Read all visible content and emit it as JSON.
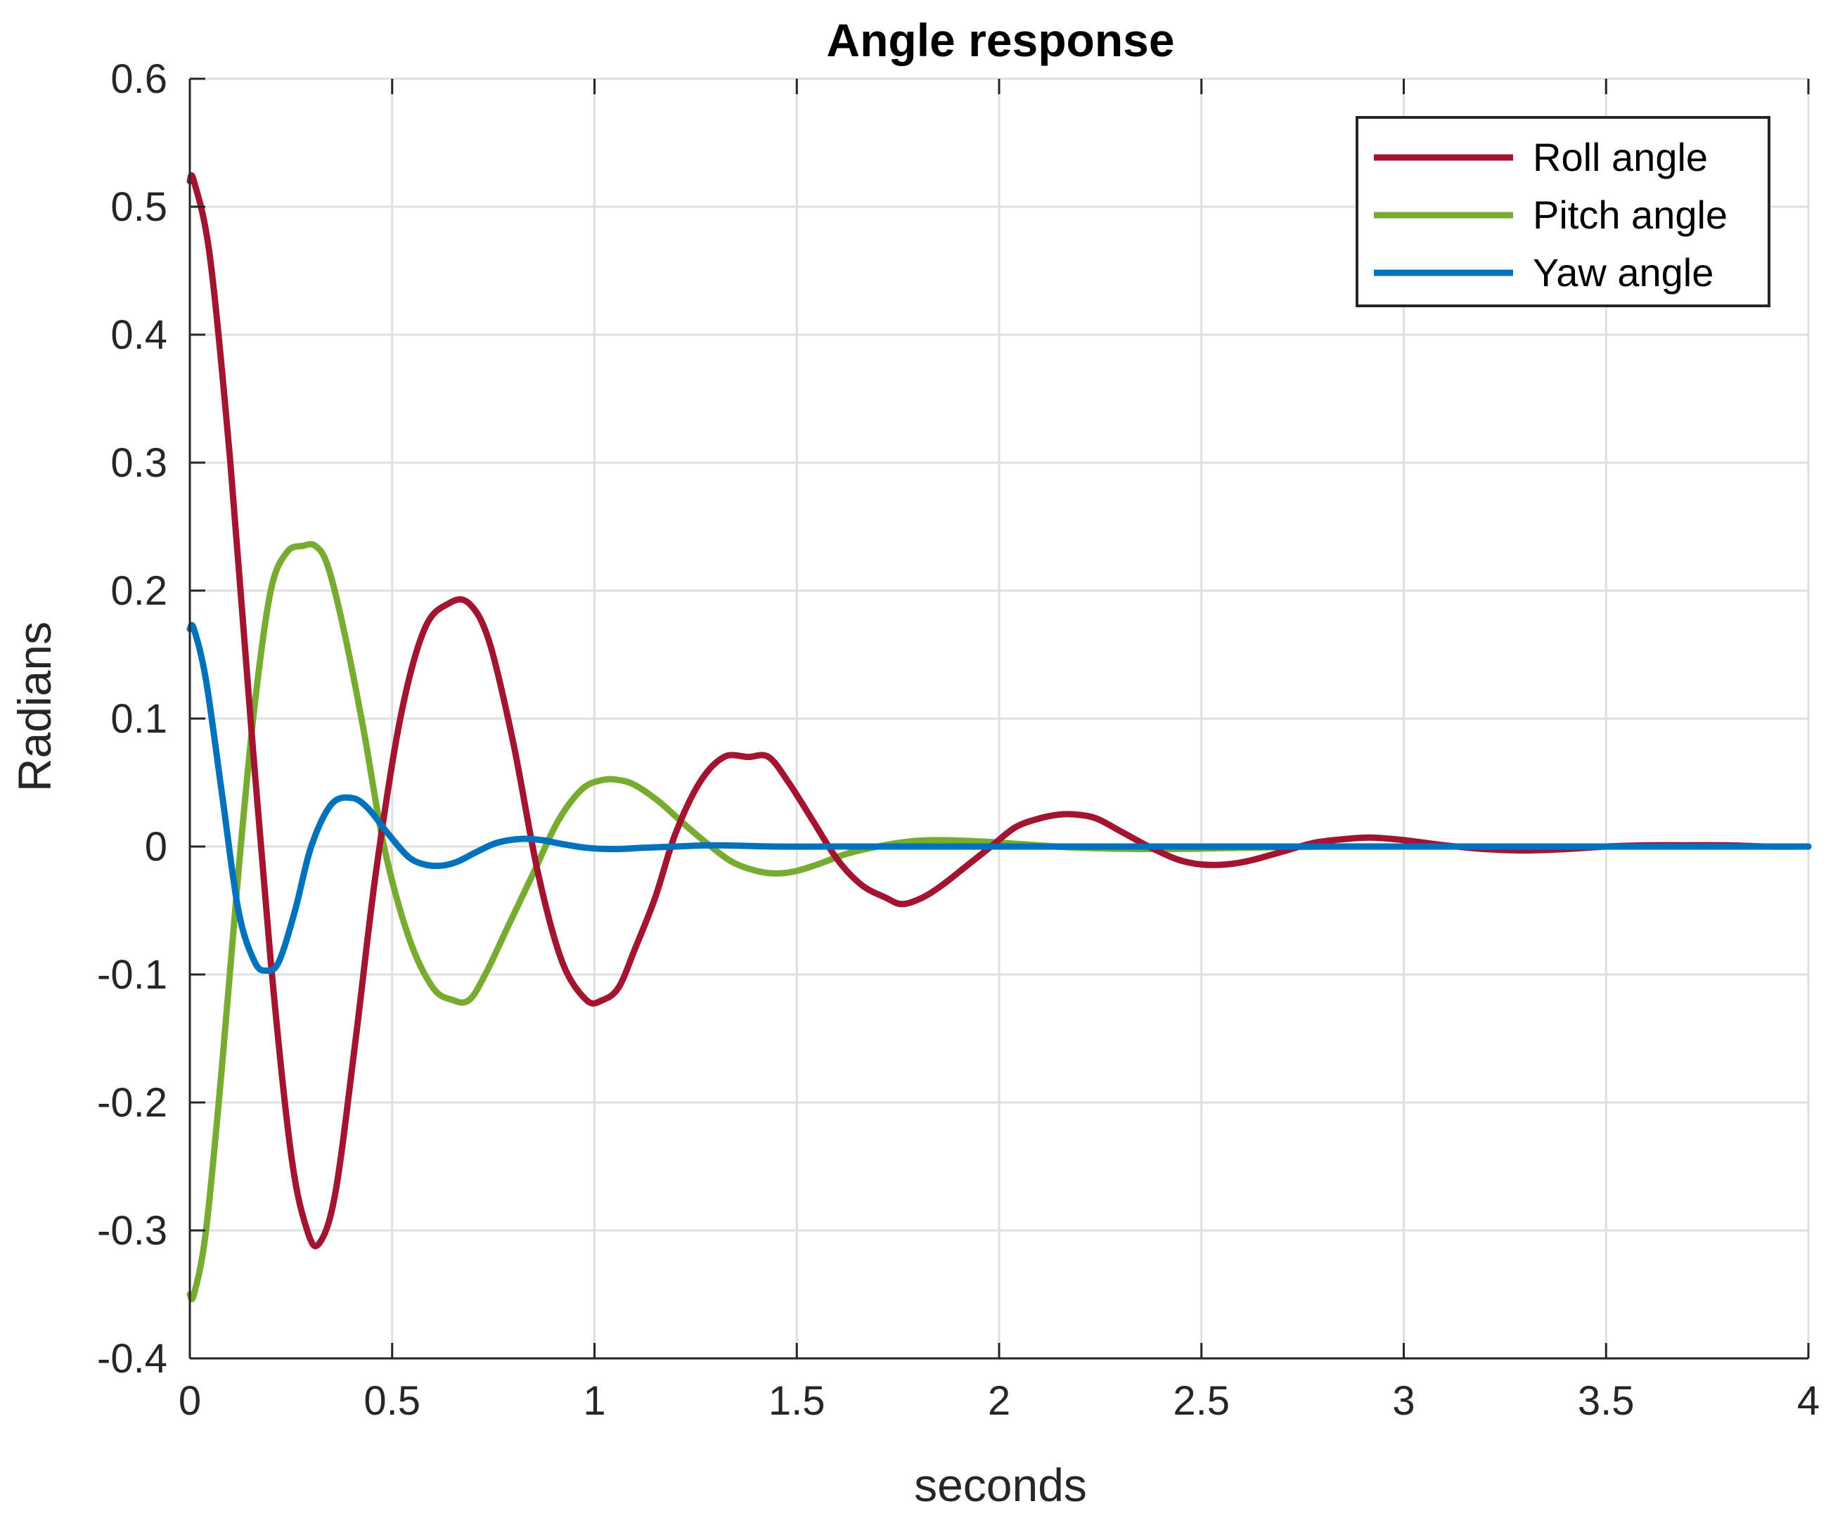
{
  "chart_data": {
    "type": "line",
    "title": "Angle response",
    "xlabel": "seconds",
    "ylabel": "Radians",
    "xlim": [
      0,
      4
    ],
    "ylim": [
      -0.4,
      0.6
    ],
    "grid": true,
    "legend_position": "top-right",
    "x_ticks": [
      {
        "value": 0,
        "label": "0"
      },
      {
        "value": 0.5,
        "label": "0.5"
      },
      {
        "value": 1,
        "label": "1"
      },
      {
        "value": 1.5,
        "label": "1.5"
      },
      {
        "value": 2,
        "label": "2"
      },
      {
        "value": 2.5,
        "label": "2.5"
      },
      {
        "value": 3,
        "label": "3"
      },
      {
        "value": 3.5,
        "label": "3.5"
      },
      {
        "value": 4,
        "label": "4"
      }
    ],
    "y_ticks": [
      {
        "value": -0.4,
        "label": "-0.4"
      },
      {
        "value": -0.3,
        "label": "-0.3"
      },
      {
        "value": -0.2,
        "label": "-0.2"
      },
      {
        "value": -0.1,
        "label": "-0.1"
      },
      {
        "value": 0,
        "label": "0"
      },
      {
        "value": 0.1,
        "label": "0.1"
      },
      {
        "value": 0.2,
        "label": "0.2"
      },
      {
        "value": 0.3,
        "label": "0.3"
      },
      {
        "value": 0.4,
        "label": "0.4"
      },
      {
        "value": 0.5,
        "label": "0.5"
      },
      {
        "value": 0.6,
        "label": "0.6"
      }
    ],
    "series": [
      {
        "name": "Roll angle",
        "color": "#A2142F",
        "x": [
          0,
          0.01,
          0.05,
          0.1,
          0.15,
          0.2,
          0.25,
          0.29,
          0.32,
          0.36,
          0.41,
          0.46,
          0.52,
          0.58,
          0.64,
          0.69,
          0.74,
          0.8,
          0.86,
          0.92,
          0.98,
          1.02,
          1.06,
          1.1,
          1.15,
          1.2,
          1.26,
          1.32,
          1.38,
          1.43,
          1.48,
          1.54,
          1.6,
          1.66,
          1.72,
          1.76,
          1.81,
          1.86,
          1.92,
          1.98,
          2.04,
          2.1,
          2.15,
          2.19,
          2.24,
          2.3,
          2.37,
          2.44,
          2.5,
          2.56,
          2.62,
          2.7,
          2.78,
          2.86,
          2.92,
          3.0,
          3.1,
          3.2,
          3.3,
          3.4,
          3.5,
          3.6,
          3.7,
          3.8,
          3.9,
          4.0
        ],
        "y": [
          0.52,
          0.52,
          0.46,
          0.3,
          0.1,
          -0.09,
          -0.24,
          -0.3,
          -0.31,
          -0.27,
          -0.15,
          -0.02,
          0.1,
          0.17,
          0.19,
          0.19,
          0.16,
          0.08,
          -0.02,
          -0.09,
          -0.12,
          -0.12,
          -0.11,
          -0.08,
          -0.04,
          0.01,
          0.05,
          0.07,
          0.07,
          0.07,
          0.05,
          0.02,
          -0.01,
          -0.03,
          -0.04,
          -0.045,
          -0.04,
          -0.03,
          -0.015,
          0.0,
          0.015,
          0.022,
          0.025,
          0.025,
          0.022,
          0.012,
          0.0,
          -0.01,
          -0.014,
          -0.014,
          -0.011,
          -0.004,
          0.003,
          0.006,
          0.007,
          0.005,
          0.001,
          -0.002,
          -0.003,
          -0.002,
          0.0,
          0.001,
          0.001,
          0.001,
          0.0,
          0.0
        ]
      },
      {
        "name": "Pitch angle",
        "color": "#77AC30",
        "x": [
          0,
          0.01,
          0.04,
          0.08,
          0.12,
          0.16,
          0.2,
          0.24,
          0.28,
          0.31,
          0.34,
          0.38,
          0.43,
          0.48,
          0.54,
          0.6,
          0.65,
          0.69,
          0.73,
          0.79,
          0.85,
          0.91,
          0.97,
          1.02,
          1.06,
          1.1,
          1.16,
          1.22,
          1.28,
          1.34,
          1.4,
          1.45,
          1.5,
          1.56,
          1.62,
          1.7,
          1.78,
          1.85,
          1.95,
          2.05,
          2.2,
          2.4,
          2.6,
          2.8,
          3.0,
          3.5,
          4.0
        ],
        "y": [
          -0.35,
          -0.35,
          -0.3,
          -0.17,
          -0.02,
          0.11,
          0.2,
          0.23,
          0.235,
          0.235,
          0.22,
          0.17,
          0.09,
          0.0,
          -0.07,
          -0.11,
          -0.12,
          -0.12,
          -0.1,
          -0.06,
          -0.02,
          0.02,
          0.045,
          0.052,
          0.052,
          0.048,
          0.035,
          0.018,
          0.002,
          -0.012,
          -0.019,
          -0.021,
          -0.019,
          -0.013,
          -0.006,
          0.0,
          0.004,
          0.005,
          0.004,
          0.002,
          -0.001,
          -0.002,
          -0.001,
          0.0,
          0.0,
          0.0,
          0.0
        ]
      },
      {
        "name": "Yaw angle",
        "color": "#0072BD",
        "x": [
          0,
          0.01,
          0.04,
          0.08,
          0.12,
          0.16,
          0.19,
          0.22,
          0.26,
          0.3,
          0.35,
          0.4,
          0.44,
          0.49,
          0.54,
          0.58,
          0.62,
          0.66,
          0.71,
          0.76,
          0.82,
          0.87,
          0.92,
          0.98,
          1.05,
          1.12,
          1.2,
          1.3,
          1.45,
          1.6,
          2.0,
          2.5,
          3.0,
          3.5,
          4.0
        ],
        "y": [
          0.17,
          0.17,
          0.13,
          0.04,
          -0.05,
          -0.09,
          -0.097,
          -0.09,
          -0.05,
          0.0,
          0.033,
          0.038,
          0.03,
          0.01,
          -0.008,
          -0.014,
          -0.015,
          -0.012,
          -0.004,
          0.003,
          0.006,
          0.005,
          0.002,
          -0.001,
          -0.002,
          -0.001,
          0.0,
          0.001,
          0.0,
          0.0,
          0.0,
          0.0,
          0.0,
          0.0,
          0.0
        ]
      }
    ]
  }
}
